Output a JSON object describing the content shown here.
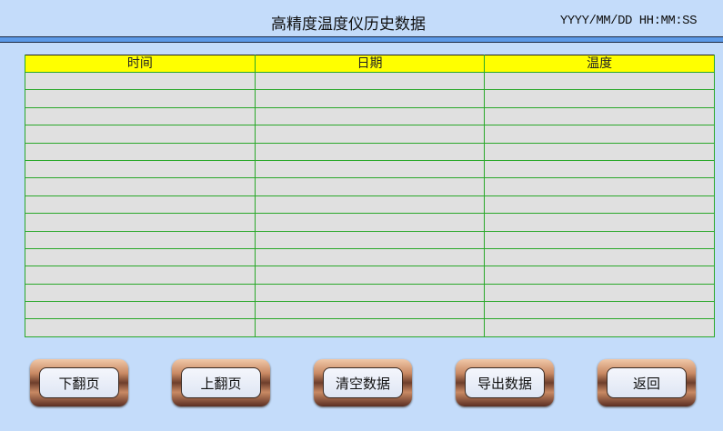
{
  "header": {
    "title": "高精度温度仪历史数据",
    "datetime": "YYYY/MM/DD HH:MM:SS"
  },
  "table": {
    "columns": [
      "时间",
      "日期",
      "温度"
    ],
    "row_count": 15
  },
  "buttons": [
    "下翻页",
    "上翻页",
    "清空数据",
    "导出数据",
    "返回"
  ]
}
